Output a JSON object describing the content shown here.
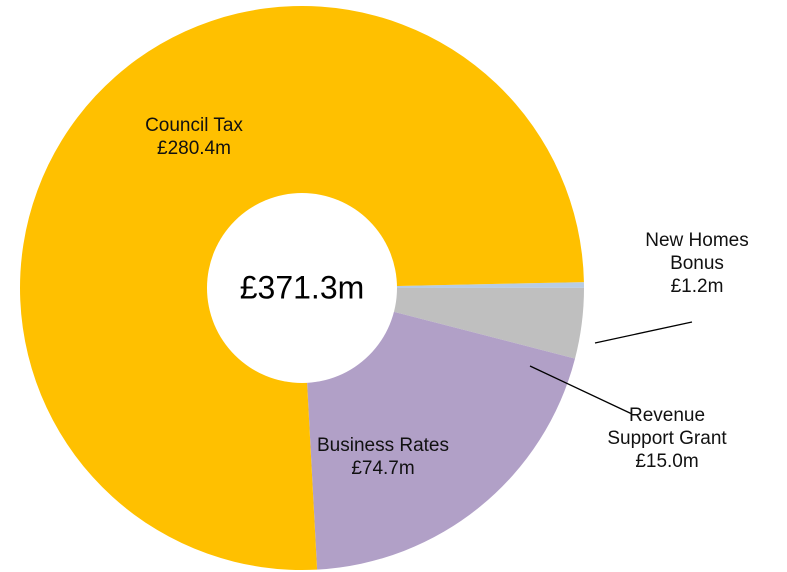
{
  "chart_data": {
    "type": "pie",
    "variant": "donut",
    "total_label": "£371.3m",
    "slices": [
      {
        "name": "New Homes Bonus",
        "value": 1.2,
        "label_lines": [
          "New Homes",
          "Bonus",
          "£1.2m"
        ],
        "color": "#B8CCE4"
      },
      {
        "name": "Revenue Support Grant",
        "value": 15.0,
        "label_lines": [
          "Revenue",
          "Support Grant",
          "£15.0m"
        ],
        "color": "#BFBFBF"
      },
      {
        "name": "Business Rates",
        "value": 74.7,
        "label_lines": [
          "Business Rates",
          "£74.7m"
        ],
        "color": "#B1A0C7"
      },
      {
        "name": "Council Tax",
        "value": 280.4,
        "label_lines": [
          "Council Tax",
          "£280.4m"
        ],
        "color": "#FFC000"
      }
    ],
    "legend": "none",
    "grid": false
  }
}
